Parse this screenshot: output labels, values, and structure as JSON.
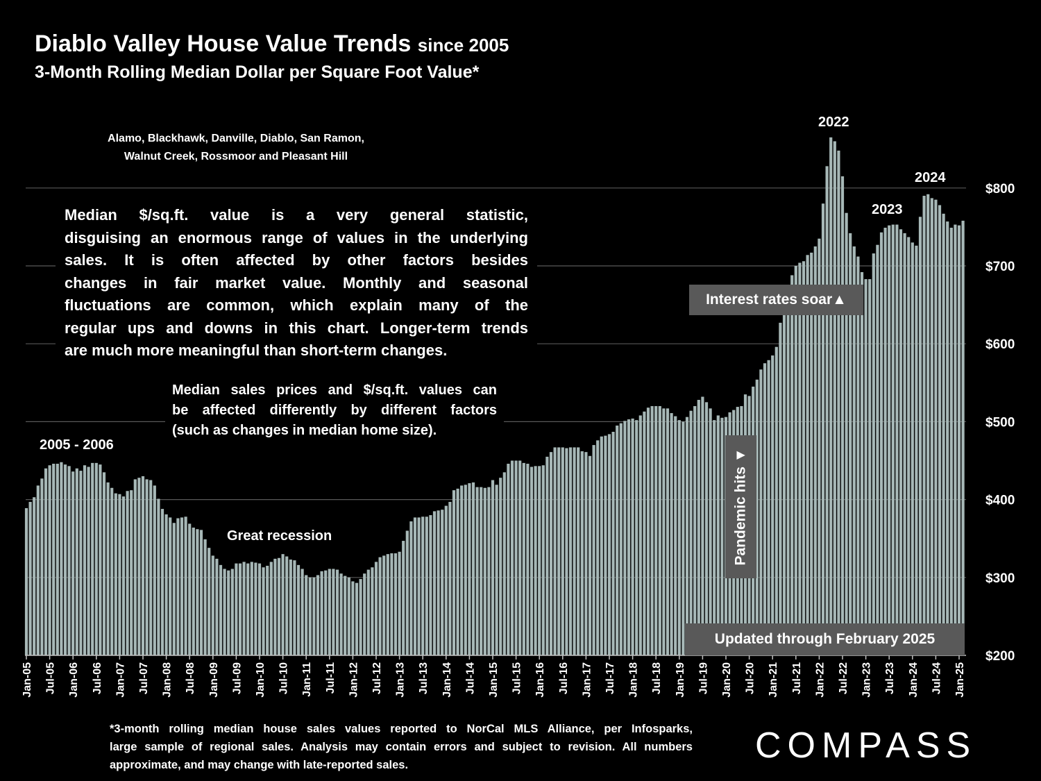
{
  "chart_data": {
    "type": "bar",
    "title": "Diablo Valley House Value Trends",
    "title_suffix": "since 2005",
    "subtitle": "3-Month Rolling Median Dollar per Square Foot Value*",
    "region_note": [
      "Alamo, Blackhawk, Danville, Diablo, San Ramon,",
      "Walnut Creek, Rossmoor and Pleasant Hill"
    ],
    "main_note": [
      "Median $/sq.ft. value is a very general statistic,",
      "disguising an enormous range of values in the underlying",
      "sales. It is often affected by other factors besides",
      "changes in fair market value. Monthly and seasonal",
      "fluctuations are common, which explain many of the",
      "regular ups and downs in this chart. Longer-term trends",
      "are much more meaningful than short-term changes."
    ],
    "second_note": [
      "Median sales prices and $/sq.ft. values can",
      "be affected differently by different factors",
      "(such as changes in median home size)."
    ],
    "annotations": [
      "2005 - 2006",
      "Great recession",
      "2022",
      "2023",
      "2024",
      "Interest rates soar▲",
      "Pandemic hits ▼",
      "Updated through February 2025"
    ],
    "footnote": [
      "*3-month rolling median house sales values reported to NorCal MLS Alliance, per Infosparks,",
      "large sample of regional sales. Analysis may contain errors and subject to revision. All numbers",
      "approximate, and may change with late-reported sales."
    ],
    "brand": "COMPASS",
    "color": "#a7b8b7",
    "grid": true,
    "ylim": [
      200,
      880
    ],
    "yticks": [
      {
        "value": 200,
        "label": "$200"
      },
      {
        "value": 300,
        "label": "$300"
      },
      {
        "value": 400,
        "label": "$400"
      },
      {
        "value": 500,
        "label": "$500"
      },
      {
        "value": 600,
        "label": "$600"
      },
      {
        "value": 700,
        "label": "$700"
      },
      {
        "value": 800,
        "label": "$800"
      }
    ],
    "categories": [
      "Jan-05",
      null,
      null,
      null,
      null,
      null,
      "Jul-05",
      null,
      null,
      null,
      null,
      null,
      "Jan-06",
      null,
      null,
      null,
      null,
      null,
      "Jul-06",
      null,
      null,
      null,
      null,
      null,
      "Jan-07",
      null,
      null,
      null,
      null,
      null,
      "Jul-07",
      null,
      null,
      null,
      null,
      null,
      "Jan-08",
      null,
      null,
      null,
      null,
      null,
      "Jul-08",
      null,
      null,
      null,
      null,
      null,
      "Jan-09",
      null,
      null,
      null,
      null,
      null,
      "Jul-09",
      null,
      null,
      null,
      null,
      null,
      "Jan-10",
      null,
      null,
      null,
      null,
      null,
      "Jul-10",
      null,
      null,
      null,
      null,
      null,
      "Jan-11",
      null,
      null,
      null,
      null,
      null,
      "Jul-11",
      null,
      null,
      null,
      null,
      null,
      "Jan-12",
      null,
      null,
      null,
      null,
      null,
      "Jul-12",
      null,
      null,
      null,
      null,
      null,
      "Jan-13",
      null,
      null,
      null,
      null,
      null,
      "Jul-13",
      null,
      null,
      null,
      null,
      null,
      "Jan-14",
      null,
      null,
      null,
      null,
      null,
      "Jul-14",
      null,
      null,
      null,
      null,
      null,
      "Jan-15",
      null,
      null,
      null,
      null,
      null,
      "Jul-15",
      null,
      null,
      null,
      null,
      null,
      "Jan-16",
      null,
      null,
      null,
      null,
      null,
      "Jul-16",
      null,
      null,
      null,
      null,
      null,
      "Jan-17",
      null,
      null,
      null,
      null,
      null,
      "Jul-17",
      null,
      null,
      null,
      null,
      null,
      "Jan-18",
      null,
      null,
      null,
      null,
      null,
      "Jul-18",
      null,
      null,
      null,
      null,
      null,
      "Jan-19",
      null,
      null,
      null,
      null,
      null,
      "Jul-19",
      null,
      null,
      null,
      null,
      null,
      "Jan-20",
      null,
      null,
      null,
      null,
      null,
      "Jul-20",
      null,
      null,
      null,
      null,
      null,
      "Jan-21",
      null,
      null,
      null,
      null,
      null,
      "Jul-21",
      null,
      null,
      null,
      null,
      null,
      "Jan-22",
      null,
      null,
      null,
      null,
      null,
      "Jul-22",
      null,
      null,
      null,
      null,
      null,
      "Jan-23",
      null,
      null,
      null,
      null,
      null,
      "Jul-23",
      null,
      null,
      null,
      null,
      null,
      "Jan-24",
      null,
      null,
      null,
      null,
      null,
      "Jul-24",
      null,
      null,
      null,
      null,
      null,
      "Jan-25",
      null
    ],
    "values": [
      389,
      397,
      403,
      418,
      427,
      440,
      444,
      446,
      446,
      448,
      445,
      443,
      436,
      440,
      437,
      444,
      442,
      447,
      447,
      445,
      435,
      422,
      415,
      408,
      407,
      404,
      411,
      412,
      426,
      428,
      430,
      426,
      425,
      418,
      401,
      388,
      381,
      377,
      370,
      376,
      377,
      378,
      369,
      364,
      362,
      361,
      349,
      338,
      328,
      324,
      316,
      311,
      309,
      311,
      318,
      318,
      320,
      318,
      320,
      319,
      318,
      313,
      315,
      320,
      324,
      325,
      330,
      327,
      323,
      322,
      316,
      311,
      303,
      300,
      300,
      303,
      308,
      309,
      311,
      311,
      310,
      305,
      302,
      300,
      295,
      293,
      298,
      305,
      310,
      313,
      320,
      326,
      328,
      330,
      331,
      331,
      333,
      347,
      360,
      372,
      377,
      377,
      378,
      378,
      380,
      385,
      386,
      387,
      392,
      397,
      412,
      414,
      418,
      419,
      421,
      422,
      416,
      416,
      415,
      416,
      425,
      419,
      428,
      435,
      446,
      450,
      450,
      450,
      447,
      446,
      442,
      443,
      443,
      444,
      455,
      461,
      467,
      467,
      467,
      466,
      467,
      467,
      467,
      462,
      461,
      456,
      470,
      476,
      481,
      482,
      484,
      487,
      495,
      498,
      501,
      503,
      504,
      502,
      508,
      513,
      518,
      520,
      520,
      520,
      517,
      517,
      511,
      507,
      502,
      500,
      506,
      514,
      520,
      528,
      532,
      525,
      517,
      502,
      508,
      505,
      506,
      512,
      515,
      519,
      520,
      535,
      533,
      545,
      554,
      567,
      575,
      579,
      585,
      596,
      627,
      646,
      667,
      688,
      700,
      704,
      706,
      714,
      717,
      725,
      735,
      780,
      828,
      865,
      860,
      848,
      815,
      768,
      742,
      725,
      712,
      692,
      683,
      683,
      716,
      727,
      743,
      749,
      752,
      753,
      753,
      747,
      742,
      737,
      730,
      726,
      763,
      790,
      792,
      787,
      785,
      778,
      767,
      757,
      749,
      753,
      752,
      758
    ]
  }
}
